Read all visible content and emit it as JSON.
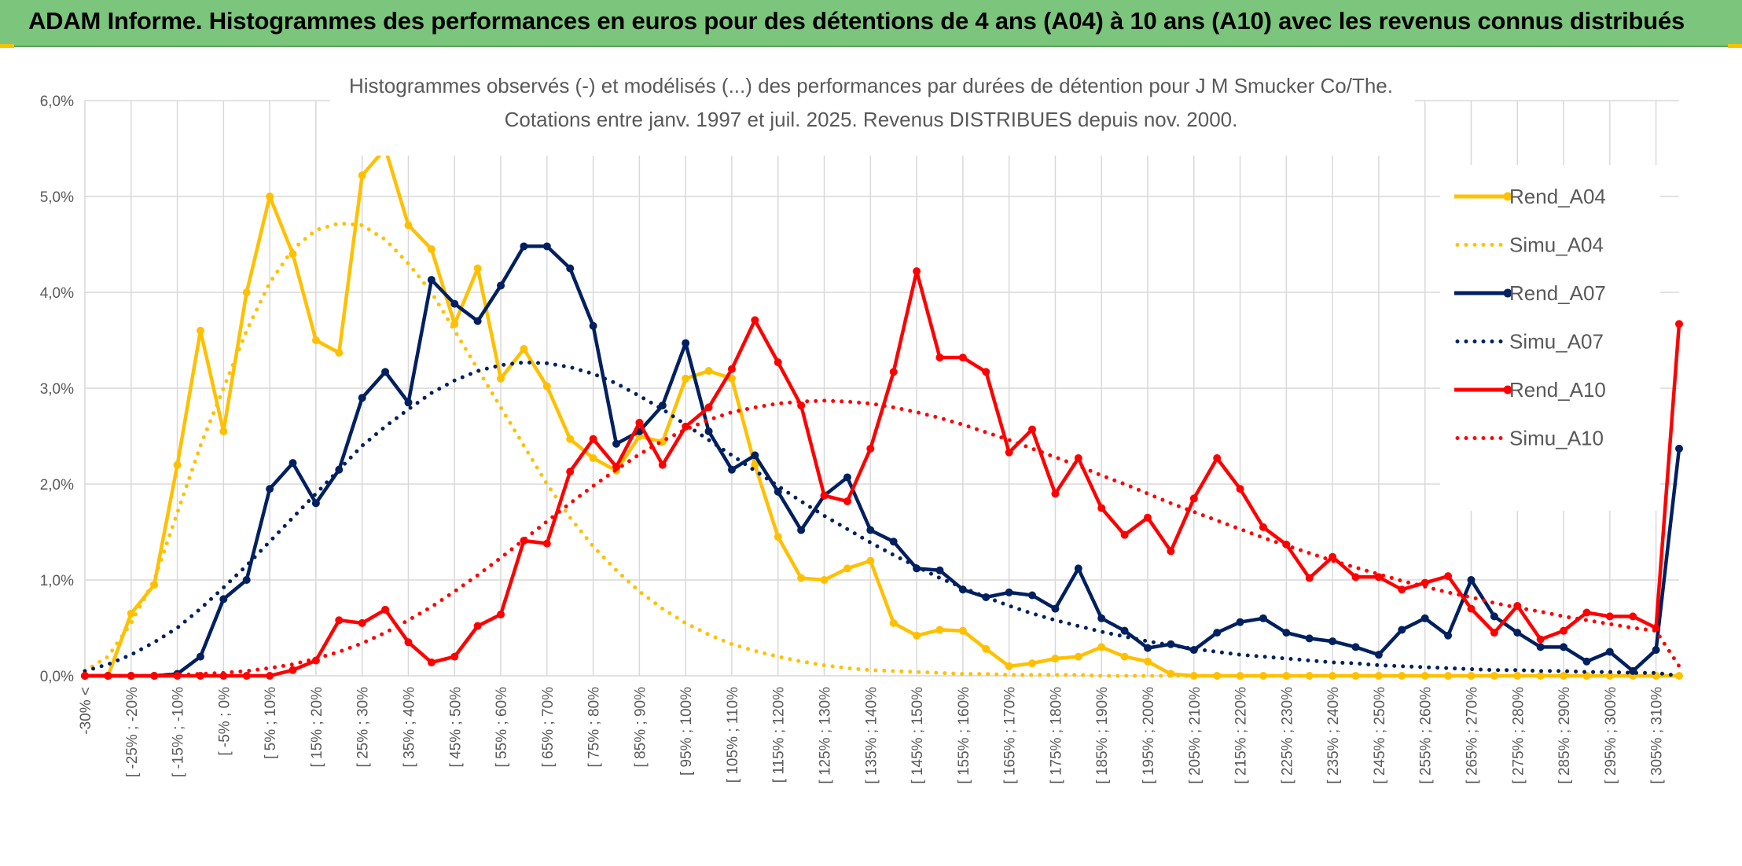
{
  "header": {
    "title": "ADAM Informe. Histogrammes des performances en euros pour des détentions de 4 ans (A04) à 10 ans (A10) avec les revenus connus distribués"
  },
  "chart_data": {
    "type": "line",
    "title": "Histogrammes observés (-) et modélisés (...) des performances par durées de détention pour J M Smucker Co/The.",
    "subtitle": "Cotations entre janv. 1997 et juil. 2025. Revenus DISTRIBUES depuis nov. 2000.",
    "ylim": [
      0,
      6
    ],
    "y_ticks": [
      "0,0%",
      "1,0%",
      "2,0%",
      "3,0%",
      "4,0%",
      "5,0%",
      "6,0%"
    ],
    "x_tick_labels": [
      "-30% <",
      "[ -25% ; -20%",
      "[ -15% ; -10%",
      "[ -5% ; 0%",
      "[ 5% ; 10%",
      "[ 15% ; 20%",
      "[ 25% ; 30%",
      "[ 35% ; 40%",
      "[ 45% ; 50%",
      "[ 55% ; 60%",
      "[ 65% ; 70%",
      "[ 75% ; 80%",
      "[ 85% ; 90%",
      "[ 95% ; 100%",
      "[ 105% ; 110%",
      "[ 115% ; 120%",
      "[ 125% ; 130%",
      "[ 135% ; 140%",
      "[ 145% ; 150%",
      "[ 155% ; 160%",
      "[ 165% ; 170%",
      "[ 175% ; 180%",
      "[ 185% ; 190%",
      "[ 195% ; 200%",
      "[ 205% ; 210%",
      "[ 215% ; 220%",
      "[ 225% ; 230%",
      "[ 235% ; 240%",
      "[ 245% ; 250%",
      "[ 255% ; 260%",
      "[ 265% ; 270%",
      "[ 275% ; 280%",
      "[ 285% ; 290%",
      "[ 295% ; 300%",
      "[ 305% ; 310%"
    ],
    "grid": true,
    "legend_position": "right",
    "series": [
      {
        "name": "Rend_A04",
        "color": "#ffc000",
        "style": "solid",
        "values": [
          0.0,
          0.0,
          0.65,
          0.95,
          2.2,
          3.6,
          2.55,
          4.0,
          5.0,
          4.4,
          3.5,
          3.37,
          5.22,
          5.5,
          4.7,
          4.45,
          3.67,
          4.25,
          3.1,
          3.41,
          3.02,
          2.47,
          2.27,
          2.14,
          2.5,
          2.44,
          3.1,
          3.18,
          3.1,
          2.2,
          1.45,
          1.02,
          1.0,
          1.12,
          1.2,
          0.55,
          0.42,
          0.48,
          0.47,
          0.28,
          0.1,
          0.13,
          0.18,
          0.2,
          0.3,
          0.2,
          0.15,
          0.02,
          0.0,
          0.0,
          0.0,
          0.0,
          0.0,
          0.0,
          0.0,
          0.0,
          0.0,
          0.0,
          0.0,
          0.0,
          0.0,
          0.0,
          0.0,
          0.0,
          0.0,
          0.0,
          0.0,
          0.0,
          0.0,
          0.0
        ]
      },
      {
        "name": "Simu_A04",
        "color": "#ffc000",
        "style": "dotted",
        "values": [
          0.05,
          0.2,
          0.55,
          1.0,
          1.7,
          2.4,
          3.0,
          3.6,
          4.1,
          4.45,
          4.65,
          4.72,
          4.7,
          4.55,
          4.3,
          4.0,
          3.6,
          3.2,
          2.8,
          2.4,
          2.0,
          1.65,
          1.35,
          1.1,
          0.88,
          0.7,
          0.55,
          0.43,
          0.33,
          0.26,
          0.2,
          0.15,
          0.11,
          0.08,
          0.06,
          0.05,
          0.04,
          0.03,
          0.02,
          0.02,
          0.01,
          0.01,
          0.01,
          0.01,
          0.0,
          0.0,
          0.0,
          0.0,
          0.0,
          0.0,
          0.0,
          0.0,
          0.0,
          0.0,
          0.0,
          0.0,
          0.0,
          0.0,
          0.0,
          0.0,
          0.0,
          0.0,
          0.0,
          0.0,
          0.0,
          0.0,
          0.0,
          0.0,
          0.0,
          0.0
        ]
      },
      {
        "name": "Rend_A07",
        "color": "#002060",
        "style": "solid",
        "values": [
          0.0,
          0.0,
          0.0,
          0.0,
          0.02,
          0.2,
          0.8,
          1.0,
          1.95,
          2.22,
          1.8,
          2.15,
          2.9,
          3.17,
          2.85,
          4.13,
          3.88,
          3.7,
          4.07,
          4.48,
          4.48,
          4.25,
          3.65,
          2.42,
          2.55,
          2.82,
          3.47,
          2.55,
          2.15,
          2.3,
          1.92,
          1.52,
          1.88,
          2.07,
          1.52,
          1.4,
          1.12,
          1.1,
          0.9,
          0.82,
          0.87,
          0.84,
          0.7,
          1.12,
          0.6,
          0.47,
          0.29,
          0.33,
          0.27,
          0.45,
          0.56,
          0.6,
          0.45,
          0.39,
          0.36,
          0.3,
          0.22,
          0.48,
          0.6,
          0.42,
          1.0,
          0.62,
          0.45,
          0.3,
          0.3,
          0.15,
          0.25,
          0.05,
          0.27,
          2.37
        ]
      },
      {
        "name": "Simu_A07",
        "color": "#002060",
        "style": "dotted",
        "values": [
          0.05,
          0.12,
          0.22,
          0.35,
          0.5,
          0.7,
          0.92,
          1.15,
          1.4,
          1.65,
          1.9,
          2.15,
          2.4,
          2.6,
          2.78,
          2.95,
          3.08,
          3.18,
          3.24,
          3.27,
          3.26,
          3.22,
          3.15,
          3.05,
          2.92,
          2.78,
          2.62,
          2.46,
          2.3,
          2.14,
          1.98,
          1.82,
          1.67,
          1.53,
          1.39,
          1.26,
          1.14,
          1.02,
          0.92,
          0.82,
          0.73,
          0.65,
          0.58,
          0.52,
          0.46,
          0.41,
          0.36,
          0.32,
          0.28,
          0.25,
          0.22,
          0.2,
          0.18,
          0.16,
          0.14,
          0.13,
          0.11,
          0.1,
          0.09,
          0.08,
          0.07,
          0.06,
          0.06,
          0.05,
          0.05,
          0.04,
          0.04,
          0.03,
          0.03,
          0.0
        ]
      },
      {
        "name": "Rend_A10",
        "color": "#ff0000",
        "style": "solid",
        "values": [
          0.0,
          0.0,
          0.0,
          0.0,
          0.0,
          0.0,
          0.0,
          0.0,
          0.0,
          0.06,
          0.16,
          0.58,
          0.55,
          0.69,
          0.35,
          0.14,
          0.2,
          0.52,
          0.64,
          1.41,
          1.38,
          2.13,
          2.47,
          2.18,
          2.64,
          2.2,
          2.6,
          2.8,
          3.2,
          3.71,
          3.27,
          2.82,
          1.88,
          1.82,
          2.37,
          3.17,
          4.22,
          3.32,
          3.32,
          3.17,
          2.33,
          2.57,
          1.9,
          2.27,
          1.75,
          1.47,
          1.65,
          1.3,
          1.85,
          2.27,
          1.95,
          1.55,
          1.37,
          1.02,
          1.24,
          1.03,
          1.03,
          0.9,
          0.97,
          1.04,
          0.7,
          0.45,
          0.73,
          0.38,
          0.47,
          0.66,
          0.62,
          0.62,
          0.5,
          3.67
        ]
      },
      {
        "name": "Simu_A10",
        "color": "#ff0000",
        "style": "dotted",
        "values": [
          0.0,
          0.0,
          0.0,
          0.0,
          0.01,
          0.02,
          0.03,
          0.05,
          0.08,
          0.12,
          0.18,
          0.25,
          0.34,
          0.45,
          0.58,
          0.72,
          0.88,
          1.05,
          1.23,
          1.42,
          1.61,
          1.8,
          1.98,
          2.15,
          2.31,
          2.45,
          2.57,
          2.67,
          2.75,
          2.8,
          2.84,
          2.86,
          2.87,
          2.86,
          2.84,
          2.8,
          2.75,
          2.69,
          2.62,
          2.54,
          2.46,
          2.37,
          2.28,
          2.19,
          2.09,
          2.0,
          1.9,
          1.8,
          1.71,
          1.62,
          1.53,
          1.44,
          1.36,
          1.28,
          1.2,
          1.13,
          1.06,
          0.99,
          0.93,
          0.87,
          0.82,
          0.76,
          0.71,
          0.67,
          0.62,
          0.58,
          0.54,
          0.5,
          0.47,
          0.1
        ]
      }
    ]
  }
}
